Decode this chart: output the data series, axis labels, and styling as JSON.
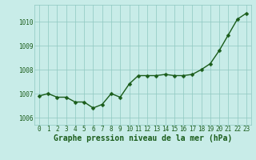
{
  "x": [
    0,
    1,
    2,
    3,
    4,
    5,
    6,
    7,
    8,
    9,
    10,
    11,
    12,
    13,
    14,
    15,
    16,
    17,
    18,
    19,
    20,
    21,
    22,
    23
  ],
  "y": [
    1006.9,
    1007.0,
    1006.85,
    1006.85,
    1006.65,
    1006.65,
    1006.4,
    1006.55,
    1007.0,
    1006.85,
    1007.4,
    1007.75,
    1007.75,
    1007.75,
    1007.8,
    1007.75,
    1007.75,
    1007.8,
    1008.0,
    1008.25,
    1008.8,
    1009.45,
    1010.1,
    1010.35
  ],
  "line_color": "#1a5c1a",
  "marker_color": "#1a5c1a",
  "bg_color": "#c8ece8",
  "grid_color": "#8ec8c0",
  "xlabel": "Graphe pression niveau de la mer (hPa)",
  "xlabel_fontsize": 7,
  "xlabel_color": "#1a5c1a",
  "ylim": [
    1005.7,
    1010.7
  ],
  "yticks": [
    1006,
    1007,
    1008,
    1009,
    1010
  ],
  "ytick_labels": [
    "1006",
    "1007",
    "1008",
    "1009",
    "1010"
  ],
  "xticks": [
    0,
    1,
    2,
    3,
    4,
    5,
    6,
    7,
    8,
    9,
    10,
    11,
    12,
    13,
    14,
    15,
    16,
    17,
    18,
    19,
    20,
    21,
    22,
    23
  ],
  "tick_fontsize": 5.5,
  "tick_color": "#1a5c1a",
  "marker_size": 2.5,
  "line_width": 1.0
}
